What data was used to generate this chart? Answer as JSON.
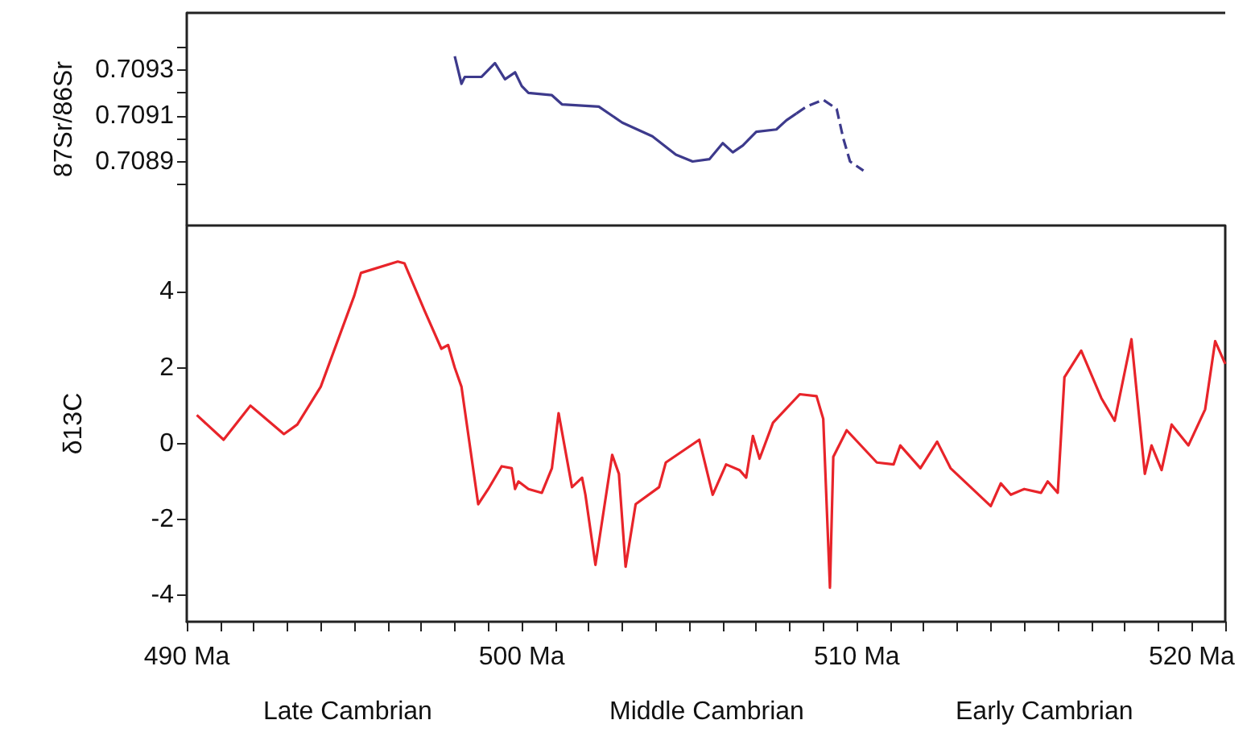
{
  "chart_data": [
    {
      "type": "line",
      "ylabel": "87Sr/86Sr",
      "xlim": [
        490,
        521
      ],
      "ylim": [
        0.70862,
        0.70955
      ],
      "yticks": [
        {
          "value": 0.7088,
          "label": null
        },
        0.7089,
        {
          "value": 0.709,
          "label": null
        },
        0.7091,
        {
          "value": 0.7092,
          "label": null
        },
        0.7093,
        {
          "value": 0.7094,
          "label": null
        }
      ],
      "tick_labels": "y",
      "series": [
        {
          "color": "#3d3a8c",
          "line_style": "solid",
          "x": [
            498.0,
            498.2,
            498.3,
            498.8,
            499.2,
            499.5,
            499.8,
            500.0,
            500.2,
            500.9,
            501.2,
            502.3,
            503.0,
            503.9,
            504.6,
            505.1,
            505.6,
            506.0,
            506.3,
            506.6,
            507.0,
            507.6,
            507.9,
            508.2
          ],
          "values": [
            0.70936,
            0.70924,
            0.70927,
            0.70927,
            0.70933,
            0.70926,
            0.70929,
            0.70923,
            0.7092,
            0.70919,
            0.70915,
            0.70914,
            0.70907,
            0.70901,
            0.70893,
            0.7089,
            0.70891,
            0.70898,
            0.70894,
            0.70897,
            0.70903,
            0.70904,
            0.70908,
            0.70911
          ]
        },
        {
          "color": "#3d3a8c",
          "line_style": "dashed",
          "x": [
            508.2,
            508.5,
            509.0,
            509.4,
            509.6,
            509.8,
            510.2
          ],
          "values": [
            0.70911,
            0.70914,
            0.70917,
            0.70913,
            0.709,
            0.7089,
            0.70886
          ]
        }
      ]
    },
    {
      "type": "line",
      "ylabel": "δ13C",
      "xlim": [
        490,
        521
      ],
      "ylim": [
        -4.7,
        5.75
      ],
      "yticks": [
        -4,
        -2,
        0,
        2,
        4
      ],
      "xticks": [
        {
          "value": 490,
          "label": "490 Ma"
        },
        {
          "value": 491,
          "label": null
        },
        {
          "value": 492,
          "label": null
        },
        {
          "value": 493,
          "label": null
        },
        {
          "value": 494,
          "label": null
        },
        {
          "value": 495,
          "label": null
        },
        {
          "value": 496,
          "label": null
        },
        {
          "value": 497,
          "label": null
        },
        {
          "value": 498,
          "label": null
        },
        {
          "value": 499,
          "label": null
        },
        {
          "value": 500,
          "label": "500 Ma"
        },
        {
          "value": 501,
          "label": null
        },
        {
          "value": 502,
          "label": null
        },
        {
          "value": 503,
          "label": null
        },
        {
          "value": 504,
          "label": null
        },
        {
          "value": 505,
          "label": null
        },
        {
          "value": 506,
          "label": null
        },
        {
          "value": 507,
          "label": null
        },
        {
          "value": 508,
          "label": null
        },
        {
          "value": 509,
          "label": null
        },
        {
          "value": 510,
          "label": "510 Ma"
        },
        {
          "value": 511,
          "label": null
        },
        {
          "value": 512,
          "label": null
        },
        {
          "value": 513,
          "label": null
        },
        {
          "value": 514,
          "label": null
        },
        {
          "value": 515,
          "label": null
        },
        {
          "value": 516,
          "label": null
        },
        {
          "value": 517,
          "label": null
        },
        {
          "value": 518,
          "label": null
        },
        {
          "value": 519,
          "label": null
        },
        {
          "value": 520,
          "label": "520 Ma"
        },
        {
          "value": 521,
          "label": null
        }
      ],
      "annotations": [
        "Late Cambrian",
        "Middle Cambrian",
        "Early Cambrian"
      ],
      "series": [
        {
          "color": "#e8242a",
          "x": [
            490.3,
            491.1,
            491.9,
            492.9,
            493.3,
            494.0,
            495.0,
            495.2,
            496.3,
            496.5,
            497.1,
            497.6,
            497.8,
            498.0,
            498.2,
            498.7,
            499.0,
            499.4,
            499.7,
            499.8,
            499.9,
            500.2,
            500.6,
            500.9,
            501.1,
            501.5,
            501.8,
            501.9,
            502.2,
            502.7,
            502.9,
            503.1,
            503.4,
            504.1,
            504.3,
            505.3,
            505.7,
            506.1,
            506.5,
            506.7,
            506.9,
            507.1,
            507.5,
            508.3,
            508.8,
            509.0,
            509.2,
            509.3,
            509.7,
            510.6,
            511.1,
            511.3,
            511.9,
            512.4,
            512.8,
            514.0,
            514.3,
            514.6,
            515.0,
            515.5,
            515.7,
            516.0,
            516.2,
            516.7,
            517.3,
            517.7,
            518.2,
            518.6,
            518.8,
            519.1,
            519.4,
            519.9,
            520.4,
            520.7,
            521.0
          ],
          "values": [
            0.75,
            0.1,
            1.0,
            0.25,
            0.5,
            1.5,
            3.9,
            4.5,
            4.8,
            4.75,
            3.5,
            2.5,
            2.6,
            2.0,
            1.5,
            -1.6,
            -1.2,
            -0.6,
            -0.65,
            -1.2,
            -1.0,
            -1.2,
            -1.3,
            -0.65,
            0.8,
            -1.15,
            -0.9,
            -1.35,
            -3.2,
            -0.3,
            -0.8,
            -3.25,
            -1.6,
            -1.15,
            -0.5,
            0.1,
            -1.35,
            -0.55,
            -0.7,
            -0.9,
            0.2,
            -0.4,
            0.55,
            1.3,
            1.25,
            0.65,
            -3.8,
            -0.35,
            0.35,
            -0.5,
            -0.55,
            -0.05,
            -0.65,
            0.05,
            -0.65,
            -1.65,
            -1.05,
            -1.35,
            -1.2,
            -1.3,
            -1.0,
            -1.3,
            1.75,
            2.45,
            1.2,
            0.6,
            2.75,
            -0.8,
            -0.05,
            -0.7,
            0.5,
            -0.05,
            0.9,
            2.7,
            2.1
          ]
        }
      ]
    }
  ]
}
